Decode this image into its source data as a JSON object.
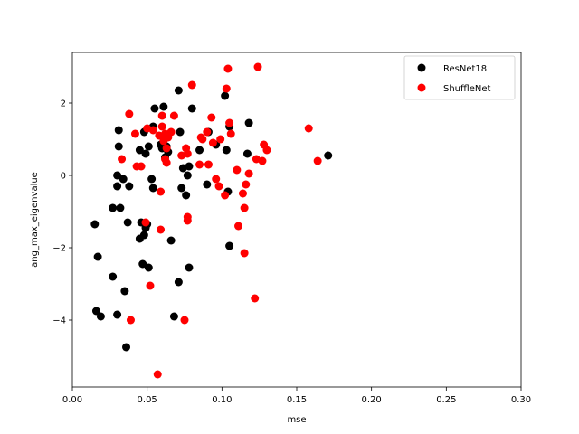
{
  "chart_data": {
    "type": "scatter",
    "title": "",
    "xlabel": "mse",
    "ylabel": "ang_max_eigenvalue",
    "xlim": [
      0.0,
      0.3
    ],
    "ylim": [
      -5.85,
      3.4
    ],
    "x_ticks": [
      0.0,
      0.05,
      0.1,
      0.15,
      0.2,
      0.25,
      0.3
    ],
    "x_tick_labels": [
      "0.00",
      "0.05",
      "0.10",
      "0.15",
      "0.20",
      "0.25",
      "0.30"
    ],
    "y_ticks": [
      -4,
      -2,
      0,
      2
    ],
    "y_tick_labels": [
      "−4",
      "−2",
      "0",
      "2"
    ],
    "grid": false,
    "legend_position": "top-right",
    "series": [
      {
        "name": "ResNet18",
        "color": "#000000",
        "points": [
          [
            0.015,
            -1.35
          ],
          [
            0.017,
            -2.25
          ],
          [
            0.016,
            -3.75
          ],
          [
            0.019,
            -3.9
          ],
          [
            0.027,
            -2.8
          ],
          [
            0.027,
            -0.9
          ],
          [
            0.03,
            -3.85
          ],
          [
            0.03,
            -0.3
          ],
          [
            0.03,
            0.0
          ],
          [
            0.031,
            0.8
          ],
          [
            0.031,
            1.25
          ],
          [
            0.032,
            -0.9
          ],
          [
            0.034,
            -0.1
          ],
          [
            0.035,
            -3.2
          ],
          [
            0.036,
            -4.75
          ],
          [
            0.037,
            -1.3
          ],
          [
            0.038,
            -0.3
          ],
          [
            0.045,
            -1.75
          ],
          [
            0.045,
            0.7
          ],
          [
            0.046,
            -1.3
          ],
          [
            0.047,
            -2.45
          ],
          [
            0.048,
            1.2
          ],
          [
            0.048,
            -1.65
          ],
          [
            0.049,
            -1.45
          ],
          [
            0.049,
            0.6
          ],
          [
            0.05,
            -1.35
          ],
          [
            0.051,
            -2.55
          ],
          [
            0.051,
            0.8
          ],
          [
            0.053,
            -0.1
          ],
          [
            0.054,
            -0.35
          ],
          [
            0.054,
            1.35
          ],
          [
            0.055,
            1.85
          ],
          [
            0.059,
            0.85
          ],
          [
            0.06,
            0.75
          ],
          [
            0.061,
            1.9
          ],
          [
            0.062,
            0.5
          ],
          [
            0.063,
            0.8
          ],
          [
            0.064,
            0.65
          ],
          [
            0.066,
            -1.8
          ],
          [
            0.068,
            -3.9
          ],
          [
            0.071,
            2.35
          ],
          [
            0.071,
            -2.95
          ],
          [
            0.072,
            1.2
          ],
          [
            0.073,
            -0.35
          ],
          [
            0.074,
            0.2
          ],
          [
            0.076,
            -0.55
          ],
          [
            0.077,
            0.0
          ],
          [
            0.078,
            0.25
          ],
          [
            0.078,
            -2.55
          ],
          [
            0.08,
            1.85
          ],
          [
            0.085,
            0.7
          ],
          [
            0.09,
            -0.25
          ],
          [
            0.091,
            1.2
          ],
          [
            0.096,
            0.85
          ],
          [
            0.102,
            2.2
          ],
          [
            0.103,
            0.7
          ],
          [
            0.104,
            -0.45
          ],
          [
            0.105,
            -1.95
          ],
          [
            0.105,
            1.35
          ],
          [
            0.117,
            0.6
          ],
          [
            0.118,
            1.45
          ],
          [
            0.171,
            0.55
          ]
        ]
      },
      {
        "name": "ShuffleNet",
        "color": "#ff0000",
        "points": [
          [
            0.033,
            0.45
          ],
          [
            0.038,
            1.7
          ],
          [
            0.039,
            -4.0
          ],
          [
            0.042,
            1.15
          ],
          [
            0.043,
            0.25
          ],
          [
            0.046,
            0.25
          ],
          [
            0.049,
            -1.3
          ],
          [
            0.05,
            1.3
          ],
          [
            0.052,
            -3.05
          ],
          [
            0.054,
            1.25
          ],
          [
            0.057,
            -5.5
          ],
          [
            0.058,
            1.1
          ],
          [
            0.059,
            -0.45
          ],
          [
            0.059,
            -1.5
          ],
          [
            0.06,
            1.35
          ],
          [
            0.06,
            1.65
          ],
          [
            0.061,
            0.95
          ],
          [
            0.062,
            1.15
          ],
          [
            0.062,
            0.45
          ],
          [
            0.063,
            0.75
          ],
          [
            0.063,
            0.35
          ],
          [
            0.064,
            1.05
          ],
          [
            0.066,
            1.2
          ],
          [
            0.068,
            1.65
          ],
          [
            0.073,
            0.55
          ],
          [
            0.075,
            -4.0
          ],
          [
            0.076,
            0.75
          ],
          [
            0.077,
            -1.15
          ],
          [
            0.077,
            0.6
          ],
          [
            0.077,
            -1.25
          ],
          [
            0.08,
            2.5
          ],
          [
            0.085,
            0.3
          ],
          [
            0.086,
            1.05
          ],
          [
            0.087,
            1.0
          ],
          [
            0.09,
            1.2
          ],
          [
            0.091,
            0.3
          ],
          [
            0.093,
            1.6
          ],
          [
            0.094,
            0.9
          ],
          [
            0.096,
            -0.1
          ],
          [
            0.098,
            -0.3
          ],
          [
            0.099,
            1.0
          ],
          [
            0.102,
            -0.55
          ],
          [
            0.103,
            2.4
          ],
          [
            0.104,
            2.95
          ],
          [
            0.105,
            1.45
          ],
          [
            0.106,
            1.15
          ],
          [
            0.11,
            0.15
          ],
          [
            0.111,
            -1.4
          ],
          [
            0.114,
            -0.5
          ],
          [
            0.115,
            -0.9
          ],
          [
            0.115,
            -2.15
          ],
          [
            0.116,
            -0.25
          ],
          [
            0.118,
            0.05
          ],
          [
            0.122,
            -3.4
          ],
          [
            0.123,
            0.45
          ],
          [
            0.124,
            3.0
          ],
          [
            0.127,
            0.4
          ],
          [
            0.128,
            0.85
          ],
          [
            0.13,
            0.7
          ],
          [
            0.158,
            1.3
          ],
          [
            0.164,
            0.4
          ]
        ]
      }
    ]
  }
}
